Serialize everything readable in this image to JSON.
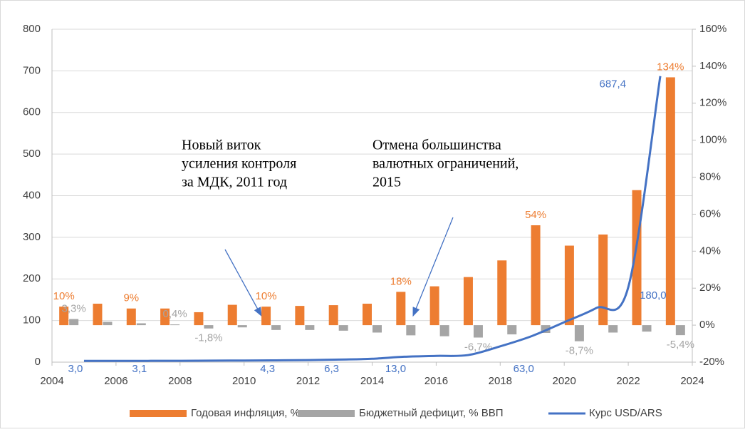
{
  "chart_data": {
    "type": "bar-line",
    "x": [
      2005,
      2006,
      2007,
      2008,
      2009,
      2010,
      2011,
      2012,
      2013,
      2014,
      2015,
      2016,
      2017,
      2018,
      2019,
      2020,
      2021,
      2022,
      2023
    ],
    "xlim": [
      2004,
      2024
    ],
    "xticks": [
      2004,
      2006,
      2008,
      2010,
      2012,
      2014,
      2016,
      2018,
      2020,
      2022,
      2024
    ],
    "ylim": [
      0,
      800
    ],
    "yticks": [
      0,
      100,
      200,
      300,
      400,
      500,
      600,
      700,
      800
    ],
    "y2lim": [
      -20,
      160
    ],
    "y2ticks": [
      {
        "value": -20,
        "label": "-20%"
      },
      {
        "value": 0,
        "label": "0%"
      },
      {
        "value": 20,
        "label": "20%"
      },
      {
        "value": 40,
        "label": "40%"
      },
      {
        "value": 60,
        "label": "60%"
      },
      {
        "value": 80,
        "label": "80%"
      },
      {
        "value": 100,
        "label": "100%"
      },
      {
        "value": 120,
        "label": "120%"
      },
      {
        "value": 140,
        "label": "140%"
      },
      {
        "value": 160,
        "label": "160%"
      }
    ],
    "grid": true,
    "legend": "bottom",
    "series": [
      {
        "name": "Годовая инфляция, %",
        "type": "bar",
        "axis": "y2",
        "color": "#ed7d31",
        "values": [
          10,
          11.6,
          9,
          9,
          7,
          11,
          10,
          10.4,
          10.8,
          11.6,
          18,
          21,
          26,
          35,
          54,
          43,
          49,
          73,
          134
        ],
        "value_labels": [
          "10%",
          null,
          "9%",
          null,
          null,
          null,
          "10%",
          null,
          null,
          null,
          "18%",
          null,
          null,
          null,
          "54%",
          null,
          null,
          null,
          "134%"
        ]
      },
      {
        "name": "Бюджетный дефицит, % ВВП",
        "type": "bar",
        "axis": "y2",
        "color": "#a5a5a5",
        "values": [
          3.3,
          1.8,
          1,
          0.4,
          -1.8,
          -1.2,
          -2.6,
          -2.6,
          -3,
          -4,
          -5.5,
          -6,
          -6.7,
          -5,
          -4.2,
          -8.7,
          -4,
          -3.5,
          -5.4
        ],
        "value_labels": [
          "3,3%",
          null,
          null,
          "0,4%",
          "-1,8%",
          null,
          null,
          null,
          null,
          null,
          null,
          null,
          "-6,7%",
          null,
          null,
          "-8,7%",
          null,
          null,
          "-5,4%"
        ]
      },
      {
        "name": "Курс USD/ARS",
        "type": "line",
        "color": "#4472c4",
        "values": [
          3,
          3.05,
          3.1,
          3.2,
          3.7,
          3.9,
          4.3,
          4.9,
          6.3,
          8.1,
          13,
          15,
          17,
          38,
          63,
          96,
          130,
          180,
          687.4
        ],
        "value_labels": [
          "3,0",
          null,
          "3,1",
          null,
          null,
          null,
          "4,3",
          null,
          "6,3",
          null,
          "13,0",
          null,
          null,
          null,
          "63,0",
          null,
          null,
          "180,0",
          "687,4"
        ]
      }
    ],
    "annotations": [
      {
        "text": [
          "Новый виток",
          "усиления контроля",
          "за МДК, 2011 год"
        ]
      },
      {
        "text": [
          "Отмена большинства",
          "валютных ограничений,",
          "2015"
        ]
      }
    ]
  }
}
